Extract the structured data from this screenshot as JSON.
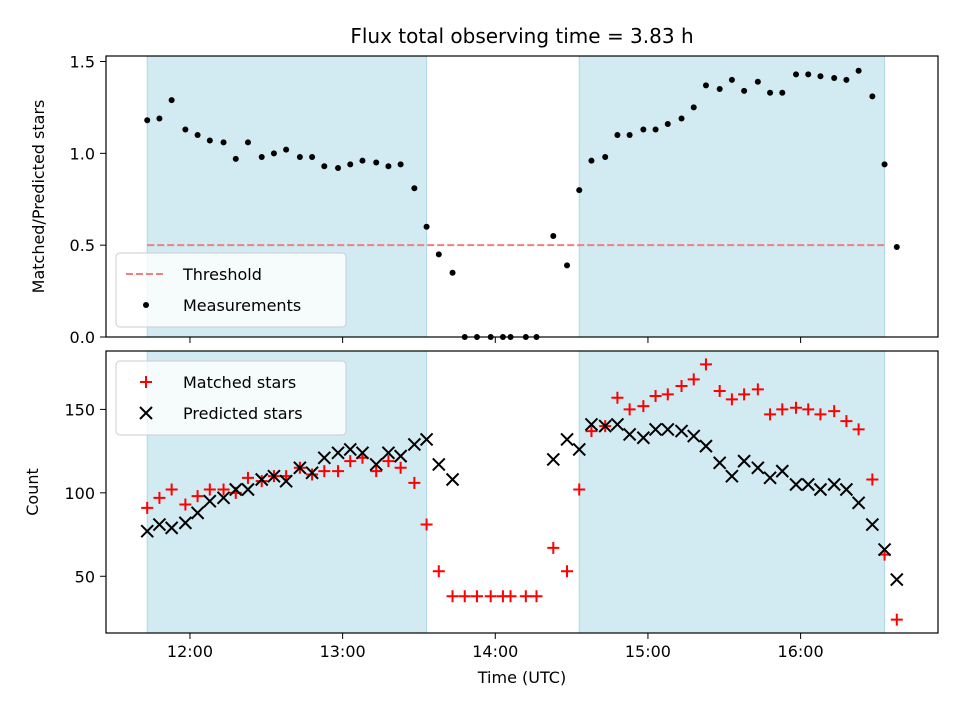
{
  "chart_data": [
    {
      "type": "scatter",
      "title": "Flux total observing time = 3.83 h",
      "ylabel": "Matched/Predicted stars",
      "xlabel": "",
      "xlim": [
        11.45,
        16.9
      ],
      "ylim": [
        0,
        1.53
      ],
      "x_ticks": [
        {
          "value": 12,
          "label": ""
        },
        {
          "value": 13,
          "label": ""
        },
        {
          "value": 14,
          "label": ""
        },
        {
          "value": 15,
          "label": ""
        },
        {
          "value": 16,
          "label": ""
        }
      ],
      "y_ticks": [
        {
          "value": 0,
          "label": "0.0"
        },
        {
          "value": 0.5,
          "label": "0.5"
        },
        {
          "value": 1.0,
          "label": "1.0"
        },
        {
          "value": 1.5,
          "label": "1.5"
        }
      ],
      "shaded_intervals": [
        [
          11.72,
          13.55
        ],
        [
          14.55,
          16.55
        ]
      ],
      "shade_color": "#add8e6",
      "grid": false,
      "legend_position": "lower-left",
      "threshold": {
        "name": "Threshold",
        "value": 0.5,
        "x_range": [
          11.72,
          16.55
        ],
        "color": "#f08080",
        "style": "dashed"
      },
      "series": [
        {
          "name": "Measurements",
          "marker": "dot",
          "color": "#000000",
          "x": [
            11.72,
            11.8,
            11.88,
            11.97,
            12.05,
            12.13,
            12.22,
            12.3,
            12.38,
            12.47,
            12.55,
            12.63,
            12.72,
            12.8,
            12.88,
            12.97,
            13.05,
            13.13,
            13.22,
            13.3,
            13.38,
            13.47,
            13.55,
            13.63,
            13.72,
            13.8,
            13.88,
            13.97,
            14.05,
            14.1,
            14.2,
            14.27,
            14.38,
            14.47,
            14.55,
            14.63,
            14.72,
            14.8,
            14.88,
            14.97,
            15.05,
            15.13,
            15.22,
            15.3,
            15.38,
            15.47,
            15.55,
            15.63,
            15.72,
            15.8,
            15.88,
            15.97,
            16.05,
            16.13,
            16.22,
            16.3,
            16.38,
            16.47,
            16.55,
            16.63
          ],
          "y": [
            1.18,
            1.19,
            1.29,
            1.13,
            1.1,
            1.07,
            1.06,
            0.97,
            1.06,
            0.98,
            1.0,
            1.02,
            0.98,
            0.98,
            0.93,
            0.92,
            0.94,
            0.96,
            0.95,
            0.93,
            0.94,
            0.81,
            0.6,
            0.45,
            0.35,
            0.0,
            0.0,
            0.0,
            0.0,
            0.0,
            0.0,
            0.0,
            0.55,
            0.39,
            0.8,
            0.96,
            0.98,
            1.1,
            1.1,
            1.13,
            1.13,
            1.16,
            1.19,
            1.25,
            1.37,
            1.35,
            1.4,
            1.34,
            1.39,
            1.33,
            1.33,
            1.43,
            1.43,
            1.42,
            1.41,
            1.4,
            1.45,
            1.31,
            0.94,
            0.49
          ]
        }
      ]
    },
    {
      "type": "scatter",
      "title": "",
      "ylabel": "Count",
      "xlabel": "Time (UTC)",
      "xlim": [
        11.45,
        16.9
      ],
      "ylim": [
        16,
        185
      ],
      "x_ticks": [
        {
          "value": 12,
          "label": "12:00"
        },
        {
          "value": 13,
          "label": "13:00"
        },
        {
          "value": 14,
          "label": "14:00"
        },
        {
          "value": 15,
          "label": "15:00"
        },
        {
          "value": 16,
          "label": "16:00"
        }
      ],
      "y_ticks": [
        {
          "value": 50,
          "label": "50"
        },
        {
          "value": 100,
          "label": "100"
        },
        {
          "value": 150,
          "label": "150"
        }
      ],
      "shaded_intervals": [
        [
          11.72,
          13.55
        ],
        [
          14.55,
          16.55
        ]
      ],
      "shade_color": "#add8e6",
      "grid": false,
      "legend_position": "upper-left",
      "series": [
        {
          "name": "Matched stars",
          "marker": "plus",
          "color": "#ff0000",
          "x": [
            11.72,
            11.8,
            11.88,
            11.97,
            12.05,
            12.13,
            12.22,
            12.3,
            12.38,
            12.47,
            12.55,
            12.63,
            12.72,
            12.8,
            12.88,
            12.97,
            13.05,
            13.13,
            13.22,
            13.3,
            13.38,
            13.47,
            13.55,
            13.63,
            13.72,
            13.8,
            13.88,
            13.97,
            14.05,
            14.1,
            14.2,
            14.27,
            14.38,
            14.47,
            14.55,
            14.63,
            14.72,
            14.8,
            14.88,
            14.97,
            15.05,
            15.13,
            15.22,
            15.3,
            15.38,
            15.47,
            15.55,
            15.63,
            15.72,
            15.8,
            15.88,
            15.97,
            16.05,
            16.13,
            16.22,
            16.3,
            16.38,
            16.47,
            16.55,
            16.63
          ],
          "y": [
            91,
            97,
            102,
            93,
            98,
            102,
            102,
            100,
            109,
            107,
            110,
            110,
            115,
            111,
            113,
            113,
            119,
            121,
            113,
            119,
            115,
            106,
            81,
            53,
            38,
            38,
            38,
            38,
            38,
            38,
            38,
            38,
            67,
            53,
            102,
            137,
            140,
            157,
            150,
            152,
            158,
            159,
            164,
            168,
            177,
            161,
            156,
            159,
            162,
            147,
            150,
            151,
            150,
            147,
            149,
            143,
            138,
            108,
            63,
            24
          ]
        },
        {
          "name": "Predicted stars",
          "marker": "x",
          "color": "#000000",
          "x": [
            11.72,
            11.8,
            11.88,
            11.97,
            12.05,
            12.13,
            12.22,
            12.3,
            12.38,
            12.47,
            12.55,
            12.63,
            12.72,
            12.8,
            12.88,
            12.97,
            13.05,
            13.13,
            13.22,
            13.3,
            13.38,
            13.47,
            13.55,
            13.63,
            13.72,
            14.38,
            14.47,
            14.55,
            14.63,
            14.72,
            14.8,
            14.88,
            14.97,
            15.05,
            15.13,
            15.22,
            15.3,
            15.38,
            15.47,
            15.55,
            15.63,
            15.72,
            15.8,
            15.88,
            15.97,
            16.05,
            16.13,
            16.22,
            16.3,
            16.38,
            16.47,
            16.55,
            16.63
          ],
          "y": [
            77,
            81,
            79,
            82,
            88,
            95,
            97,
            102,
            102,
            108,
            110,
            107,
            115,
            112,
            121,
            124,
            126,
            124,
            117,
            124,
            122,
            129,
            132,
            117,
            108,
            120,
            132,
            126,
            141,
            140,
            141,
            135,
            133,
            138,
            138,
            137,
            134,
            128,
            118,
            110,
            119,
            115,
            109,
            113,
            105,
            105,
            102,
            105,
            102,
            94,
            81,
            66,
            48
          ]
        }
      ]
    }
  ]
}
